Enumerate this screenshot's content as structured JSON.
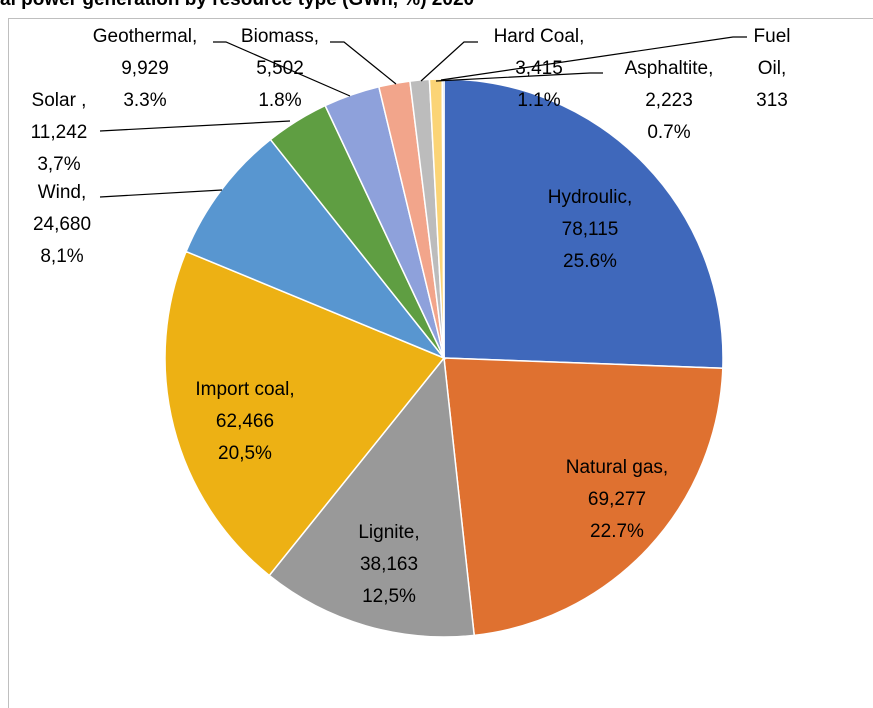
{
  "chart_data": {
    "type": "pie",
    "title": "al power generation by resource type (GWh, %) 2020",
    "categories": [
      "Hydroulic,",
      "Natural gas,",
      "Lignite,",
      "Import coal,",
      "Wind,",
      "Solar ,",
      "Geothermal,",
      "Biomass,",
      "Hard Coal,",
      "Asphaltite,",
      "Fuel Oil,"
    ],
    "values": [
      78115,
      69277,
      38163,
      62466,
      24680,
      11242,
      9929,
      5502,
      3415,
      2223,
      313
    ],
    "value_labels": [
      "78,115",
      "69,277",
      "38,163",
      "62,466",
      "24,680",
      "11,242",
      "9,929",
      "5,502",
      "3,415",
      "2,223",
      "313"
    ],
    "percent": [
      25.6,
      22.7,
      12.5,
      20.5,
      8.1,
      3.7,
      3.3,
      1.8,
      1.1,
      0.7,
      null
    ],
    "percent_labels": [
      "25.6%",
      "22.7%",
      "12,5%",
      "20,5%",
      "8,1%",
      "3,7%",
      "3.3%",
      "1.8%",
      "1.1%",
      "0.7%",
      null
    ],
    "colors": [
      "#3f68bb",
      "#df7130",
      "#999999",
      "#edb114",
      "#5896d0",
      "#5f9e42",
      "#8ea1db",
      "#f2a58b",
      "#bcbcbc",
      "#fbd476",
      "#a9c4e6"
    ]
  }
}
